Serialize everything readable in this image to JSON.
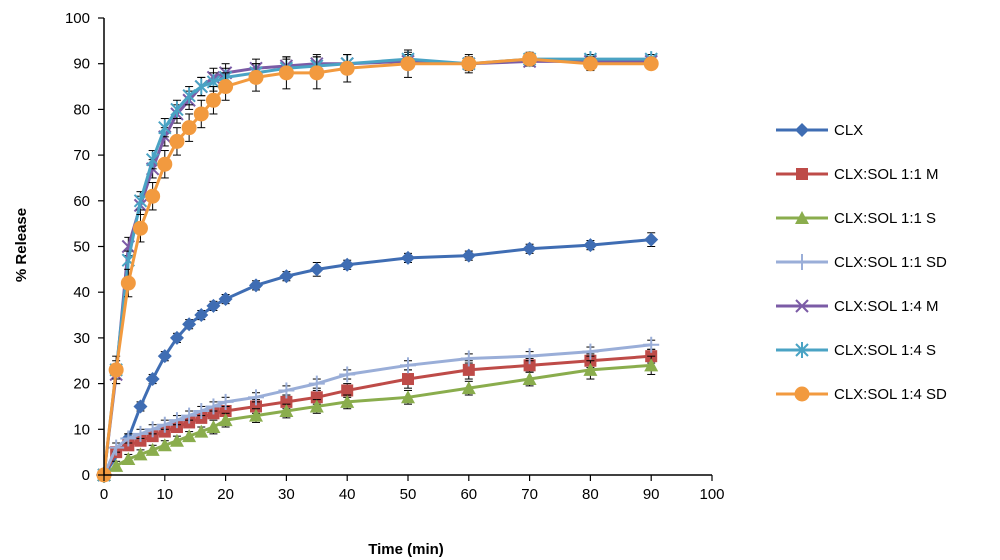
{
  "chart_data": {
    "type": "line",
    "xlabel": "Time (min)",
    "ylabel": "% Release",
    "xlim": [
      0,
      100
    ],
    "ylim": [
      0,
      100
    ],
    "x_ticks": [
      "0",
      "10",
      "20",
      "30",
      "40",
      "50",
      "60",
      "70",
      "80",
      "90",
      "100"
    ],
    "y_ticks": [
      "0",
      "10",
      "20",
      "30",
      "40",
      "50",
      "60",
      "70",
      "80",
      "90",
      "100"
    ],
    "grid": false,
    "legend_position": "right",
    "error_bars": true,
    "series": [
      {
        "name": "CLX",
        "color": "#3f6db3",
        "marker": "diamond",
        "x": [
          0,
          4,
          6,
          8,
          10,
          12,
          14,
          16,
          18,
          20,
          25,
          30,
          35,
          40,
          50,
          60,
          70,
          80,
          90
        ],
        "y": [
          0,
          8,
          15,
          21,
          26,
          30,
          33,
          35,
          37,
          38.5,
          41.5,
          43.5,
          45,
          46,
          47.5,
          48,
          49.5,
          50.3,
          51.5
        ],
        "err": [
          0,
          1,
          1,
          1,
          1,
          1,
          1,
          1,
          1,
          1,
          1,
          1,
          1.5,
          1,
          1,
          1,
          1,
          1,
          1.5
        ]
      },
      {
        "name": "CLX:SOL 1:1 M",
        "color": "#be4b48",
        "marker": "square",
        "x": [
          0,
          2,
          4,
          6,
          8,
          10,
          12,
          14,
          16,
          18,
          20,
          25,
          30,
          35,
          40,
          50,
          60,
          70,
          80,
          90
        ],
        "y": [
          0,
          5,
          6.5,
          7.5,
          8.5,
          9.5,
          10.5,
          11.5,
          12.5,
          13.5,
          14,
          15,
          16,
          17,
          18.5,
          21,
          23,
          24,
          25,
          26
        ],
        "err": [
          0,
          1,
          1,
          1,
          1,
          1,
          1,
          1,
          1,
          1,
          1,
          1.5,
          1.5,
          1.5,
          1.5,
          2,
          2,
          1.5,
          1.5,
          1.5
        ]
      },
      {
        "name": "CLX:SOL 1:1 S",
        "color": "#8aad4d",
        "marker": "triangle",
        "x": [
          0,
          2,
          4,
          6,
          8,
          10,
          12,
          14,
          16,
          18,
          20,
          25,
          30,
          35,
          40,
          50,
          60,
          70,
          80,
          90
        ],
        "y": [
          0,
          2,
          3.5,
          4.5,
          5.5,
          6.5,
          7.5,
          8.5,
          9.5,
          10.5,
          12,
          13,
          14,
          15,
          16,
          17,
          19,
          21,
          23,
          24
        ],
        "err": [
          0,
          1,
          1,
          1,
          1,
          1,
          1,
          1,
          1,
          1.5,
          1.5,
          1.5,
          1.5,
          1.5,
          1.5,
          1.5,
          1.5,
          1.5,
          2,
          2
        ]
      },
      {
        "name": "CLX:SOL 1:1 SD",
        "color": "#9aaed8",
        "marker": "plus",
        "x": [
          0,
          2,
          4,
          6,
          8,
          10,
          12,
          14,
          16,
          18,
          20,
          25,
          30,
          35,
          40,
          50,
          60,
          70,
          80,
          90
        ],
        "y": [
          0,
          6,
          8,
          9,
          10,
          11,
          12,
          13,
          14,
          15,
          16,
          17,
          18.5,
          20,
          22,
          24,
          25.5,
          26,
          27,
          28.5
        ],
        "err": [
          0,
          1,
          1,
          1,
          1,
          1,
          1,
          1,
          1,
          1,
          1,
          1,
          1,
          1,
          1,
          1,
          1,
          1,
          1,
          1
        ]
      },
      {
        "name": "CLX:SOL 1:4 M",
        "color": "#7b5ba6",
        "marker": "x",
        "x": [
          0,
          2,
          4,
          6,
          8,
          10,
          12,
          14,
          16,
          18,
          20,
          25,
          30,
          35,
          40,
          50,
          60,
          70,
          80,
          90
        ],
        "y": [
          0,
          22,
          50,
          59,
          67,
          74,
          79,
          82,
          85,
          87,
          88,
          89,
          89.5,
          90,
          90,
          90.5,
          90,
          90.5,
          90.5,
          90.5
        ],
        "err": [
          0,
          2,
          2,
          2,
          2,
          2,
          2,
          2,
          2,
          2,
          2,
          2,
          2,
          2,
          2,
          1.5,
          1.5,
          1,
          1,
          1
        ]
      },
      {
        "name": "CLX:SOL 1:4 S",
        "color": "#4aa3c4",
        "marker": "asterisk",
        "x": [
          0,
          2,
          4,
          6,
          8,
          10,
          12,
          14,
          16,
          18,
          20,
          25,
          30,
          35,
          40,
          50,
          60,
          70,
          80,
          90
        ],
        "y": [
          0,
          23,
          47,
          60,
          69,
          76,
          80,
          83,
          85,
          86,
          87,
          88,
          89,
          89.5,
          90,
          91,
          90,
          91,
          91,
          91
        ],
        "err": [
          0,
          2,
          2,
          2,
          2,
          2,
          2,
          2,
          2,
          2,
          2,
          2,
          2,
          2,
          2,
          1.5,
          1.5,
          1,
          1,
          1
        ]
      },
      {
        "name": "CLX:SOL 1:4 SD",
        "color": "#f29a3f",
        "marker": "circle",
        "x": [
          0,
          2,
          4,
          6,
          8,
          10,
          12,
          14,
          16,
          18,
          20,
          25,
          30,
          35,
          40,
          50,
          60,
          70,
          80,
          90
        ],
        "y": [
          0,
          23,
          42,
          54,
          61,
          68,
          73,
          76,
          79,
          82,
          85,
          87,
          88,
          88,
          89,
          90,
          90,
          91,
          90,
          90
        ],
        "err": [
          0,
          3,
          3,
          3,
          3,
          3,
          3,
          3,
          3,
          3,
          3,
          3,
          3.5,
          3.5,
          3,
          3,
          2,
          1.5,
          1.5,
          1
        ]
      }
    ]
  }
}
